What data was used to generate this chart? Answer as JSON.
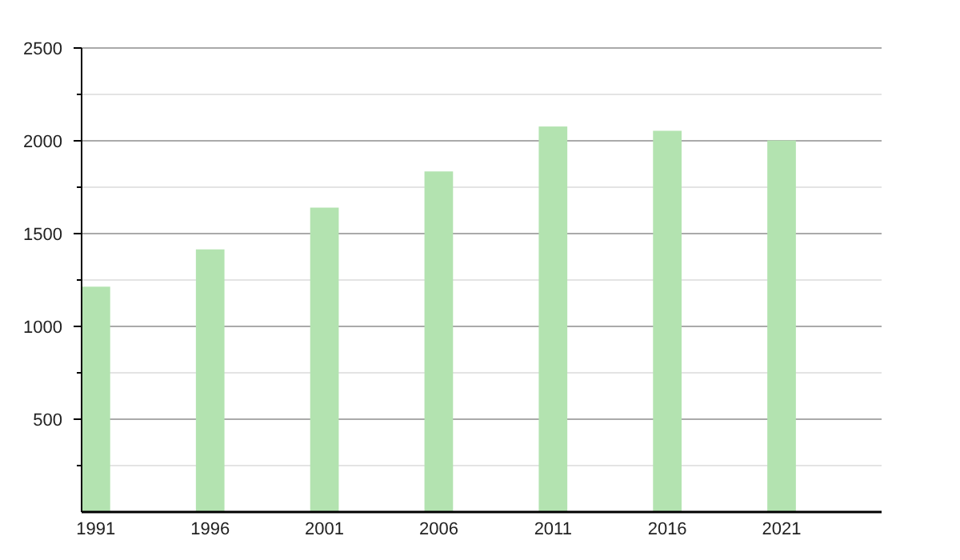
{
  "chart_data": {
    "type": "bar",
    "categories": [
      "1991",
      "1996",
      "2001",
      "2006",
      "2011",
      "2016",
      "2021"
    ],
    "values": [
      1214,
      1415,
      1640,
      1835,
      2077,
      2054,
      2002
    ],
    "color": "#b3e3b0",
    "ylim": [
      0,
      2500
    ],
    "yticks": [
      {
        "value": 250,
        "label": null
      },
      500,
      {
        "value": 750,
        "label": null
      },
      1000,
      {
        "value": 1250,
        "label": null
      },
      1500,
      {
        "value": 1750,
        "label": null
      },
      2000,
      {
        "value": 2250,
        "label": null
      },
      2500
    ],
    "grid": "y"
  }
}
